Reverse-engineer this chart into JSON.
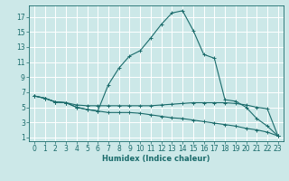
{
  "xlabel": "Humidex (Indice chaleur)",
  "background_color": "#cce8e8",
  "grid_color": "#b0d4d4",
  "line_color": "#1a6b6b",
  "xlim": [
    -0.5,
    23.5
  ],
  "ylim": [
    0.5,
    18.5
  ],
  "xticks": [
    0,
    1,
    2,
    3,
    4,
    5,
    6,
    7,
    8,
    9,
    10,
    11,
    12,
    13,
    14,
    15,
    16,
    17,
    18,
    19,
    20,
    21,
    22,
    23
  ],
  "yticks": [
    1,
    3,
    5,
    7,
    9,
    11,
    13,
    15,
    17
  ],
  "series": [
    {
      "x": [
        0,
        1,
        2,
        3,
        4,
        5,
        6,
        7,
        8,
        9,
        10,
        11,
        12,
        13,
        14,
        15,
        16,
        17,
        18,
        19,
        20,
        21,
        22,
        23
      ],
      "y": [
        6.5,
        6.2,
        5.7,
        5.6,
        5.0,
        4.7,
        4.5,
        8.0,
        10.2,
        11.8,
        12.5,
        14.2,
        16.0,
        17.5,
        17.8,
        15.2,
        12.0,
        11.5,
        6.0,
        5.8,
        5.0,
        3.5,
        2.5,
        1.2
      ]
    },
    {
      "x": [
        0,
        1,
        2,
        3,
        4,
        5,
        6,
        7,
        8,
        9,
        10,
        11,
        12,
        13,
        14,
        15,
        16,
        17,
        18,
        19,
        20,
        21,
        22,
        23
      ],
      "y": [
        6.5,
        6.2,
        5.7,
        5.6,
        5.3,
        5.2,
        5.2,
        5.2,
        5.2,
        5.2,
        5.2,
        5.2,
        5.3,
        5.4,
        5.5,
        5.6,
        5.6,
        5.6,
        5.6,
        5.5,
        5.3,
        5.0,
        4.8,
        1.2
      ]
    },
    {
      "x": [
        0,
        1,
        2,
        3,
        4,
        5,
        6,
        7,
        8,
        9,
        10,
        11,
        12,
        13,
        14,
        15,
        16,
        17,
        18,
        19,
        20,
        21,
        22,
        23
      ],
      "y": [
        6.5,
        6.2,
        5.7,
        5.6,
        5.0,
        4.7,
        4.5,
        4.3,
        4.3,
        4.3,
        4.2,
        4.0,
        3.8,
        3.6,
        3.5,
        3.3,
        3.1,
        2.9,
        2.7,
        2.5,
        2.2,
        2.0,
        1.7,
        1.2
      ]
    }
  ]
}
